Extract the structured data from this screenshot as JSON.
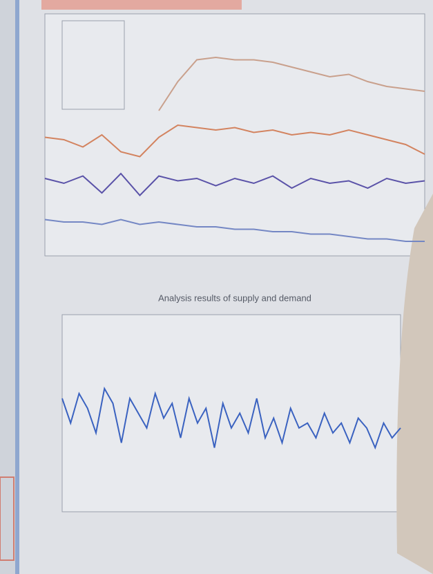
{
  "chart_data": [
    {
      "type": "line",
      "x": [
        0,
        1,
        2,
        3,
        4,
        5,
        6,
        7,
        8,
        9,
        10,
        11,
        12,
        13,
        14,
        15,
        16,
        17,
        18,
        19,
        20
      ],
      "xlim": [
        0,
        20
      ],
      "ylim": [
        0,
        10
      ],
      "series": [
        {
          "color": "#c9a08c",
          "values": [
            null,
            null,
            null,
            null,
            null,
            null,
            6.0,
            7.2,
            8.1,
            8.2,
            8.1,
            8.1,
            8.0,
            7.8,
            7.6,
            7.4,
            7.5,
            7.2,
            7.0,
            6.9,
            6.8
          ]
        },
        {
          "color": "#d3835f",
          "values": [
            4.9,
            4.8,
            4.5,
            5.0,
            4.3,
            4.1,
            4.9,
            5.4,
            5.3,
            5.2,
            5.3,
            5.1,
            5.2,
            5.0,
            5.1,
            5.0,
            5.2,
            5.0,
            4.8,
            4.6,
            4.2
          ]
        },
        {
          "color": "#5a52a8",
          "values": [
            3.2,
            3.0,
            3.3,
            2.6,
            3.4,
            2.5,
            3.3,
            3.1,
            3.2,
            2.9,
            3.2,
            3.0,
            3.3,
            2.8,
            3.2,
            3.0,
            3.1,
            2.8,
            3.2,
            3.0,
            3.1
          ]
        },
        {
          "color": "#7487c4",
          "values": [
            1.5,
            1.4,
            1.4,
            1.3,
            1.5,
            1.3,
            1.4,
            1.3,
            1.2,
            1.2,
            1.1,
            1.1,
            1.0,
            1.0,
            0.9,
            0.9,
            0.8,
            0.7,
            0.7,
            0.6,
            0.6
          ]
        }
      ]
    },
    {
      "type": "line",
      "title": "Analysis results of supply and demand",
      "x": [
        0,
        1,
        2,
        3,
        4,
        5,
        6,
        7,
        8,
        9,
        10,
        11,
        12,
        13,
        14,
        15,
        16,
        17,
        18,
        19,
        20,
        21,
        22,
        23,
        24,
        25,
        26,
        27,
        28,
        29,
        30,
        31,
        32,
        33,
        34,
        35,
        36,
        37,
        38,
        39,
        40
      ],
      "xlim": [
        0,
        40
      ],
      "ylim": [
        -2,
        2
      ],
      "series": [
        {
          "color": "#3a62c0",
          "values": [
            0.3,
            -0.2,
            0.4,
            0.1,
            -0.4,
            0.5,
            0.2,
            -0.6,
            0.3,
            0.0,
            -0.3,
            0.4,
            -0.1,
            0.2,
            -0.5,
            0.3,
            -0.2,
            0.1,
            -0.7,
            0.2,
            -0.3,
            0.0,
            -0.4,
            0.3,
            -0.5,
            -0.1,
            -0.6,
            0.1,
            -0.3,
            -0.2,
            -0.5,
            0.0,
            -0.4,
            -0.2,
            -0.6,
            -0.1,
            -0.3,
            -0.7,
            -0.2,
            -0.5,
            -0.3
          ]
        }
      ]
    }
  ]
}
